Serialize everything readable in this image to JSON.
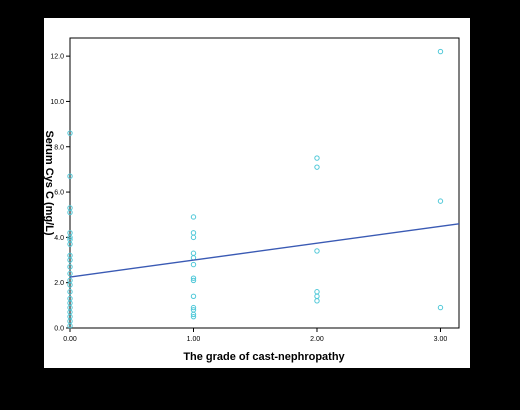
{
  "chart_data": {
    "type": "scatter",
    "title": "",
    "xlabel": "The grade of cast-nephropathy",
    "ylabel": "Serum Cys C (mg/L)",
    "xlim": [
      0.0,
      3.15
    ],
    "ylim": [
      0.0,
      12.8
    ],
    "x_ticks": [
      "0.00",
      "1.00",
      "2.00",
      "3.00"
    ],
    "y_ticks": [
      "0.0",
      "2.0",
      "4.0",
      "6.0",
      "8.0",
      "10.0",
      "12.0"
    ],
    "grid": false,
    "legend": "none",
    "colors": {
      "points": "#4fc8d8",
      "fit_line": "#3a5ab4",
      "plot_background": "#ffffff",
      "page_background": "#000000"
    },
    "points": [
      {
        "x": 0,
        "y": 8.6
      },
      {
        "x": 0,
        "y": 6.7
      },
      {
        "x": 0,
        "y": 5.3
      },
      {
        "x": 0,
        "y": 5.1
      },
      {
        "x": 0,
        "y": 4.2
      },
      {
        "x": 0,
        "y": 4.0
      },
      {
        "x": 0,
        "y": 3.9
      },
      {
        "x": 0,
        "y": 3.7
      },
      {
        "x": 0,
        "y": 3.2
      },
      {
        "x": 0,
        "y": 3.0
      },
      {
        "x": 0,
        "y": 2.7
      },
      {
        "x": 0,
        "y": 2.4
      },
      {
        "x": 0,
        "y": 2.1
      },
      {
        "x": 0,
        "y": 1.9
      },
      {
        "x": 0,
        "y": 1.6
      },
      {
        "x": 0,
        "y": 1.3
      },
      {
        "x": 0,
        "y": 1.1
      },
      {
        "x": 0,
        "y": 0.9
      },
      {
        "x": 0,
        "y": 0.7
      },
      {
        "x": 0,
        "y": 0.5
      },
      {
        "x": 0,
        "y": 0.3
      },
      {
        "x": 0,
        "y": 0.1
      },
      {
        "x": 1,
        "y": 4.9
      },
      {
        "x": 1,
        "y": 4.2
      },
      {
        "x": 1,
        "y": 4.0
      },
      {
        "x": 1,
        "y": 3.3
      },
      {
        "x": 1,
        "y": 3.1
      },
      {
        "x": 1,
        "y": 2.8
      },
      {
        "x": 1,
        "y": 2.2
      },
      {
        "x": 1,
        "y": 2.1
      },
      {
        "x": 1,
        "y": 1.4
      },
      {
        "x": 1,
        "y": 0.9
      },
      {
        "x": 1,
        "y": 0.8
      },
      {
        "x": 1,
        "y": 0.6
      },
      {
        "x": 1,
        "y": 0.5
      },
      {
        "x": 2,
        "y": 7.5
      },
      {
        "x": 2,
        "y": 7.1
      },
      {
        "x": 2,
        "y": 3.4
      },
      {
        "x": 2,
        "y": 1.6
      },
      {
        "x": 2,
        "y": 1.4
      },
      {
        "x": 2,
        "y": 1.2
      },
      {
        "x": 3,
        "y": 12.2
      },
      {
        "x": 3,
        "y": 5.6
      },
      {
        "x": 3,
        "y": 0.9
      }
    ],
    "fit_line": {
      "x": [
        0.0,
        3.15
      ],
      "y": [
        2.25,
        4.6
      ]
    }
  }
}
